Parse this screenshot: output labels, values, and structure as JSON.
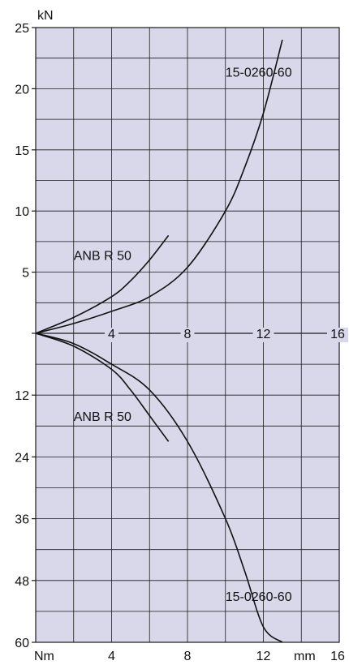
{
  "chart_data": {
    "type": "line",
    "colors": {
      "plot_background": "#d8d8ea",
      "grid": "#1a1a1a",
      "curve": "#111111"
    },
    "upper": {
      "unit": "kN",
      "ylim": [
        0,
        25
      ],
      "yticks": [
        {
          "value": 25,
          "label": "25"
        },
        {
          "value": 20,
          "label": "20"
        },
        {
          "value": 15,
          "label": "15"
        },
        {
          "value": 10,
          "label": "10"
        },
        {
          "value": 5,
          "label": "5"
        }
      ],
      "series": [
        {
          "name": "15-0260-60",
          "x": [
            0,
            2,
            4,
            6,
            8,
            10,
            11,
            12,
            13
          ],
          "y": [
            0,
            0.8,
            1.8,
            3,
            5.4,
            10,
            13.5,
            18,
            24
          ]
        },
        {
          "name": "ANB R 50",
          "x": [
            0,
            2,
            4,
            5,
            6,
            7
          ],
          "y": [
            0,
            1.3,
            3,
            4.3,
            6,
            8
          ]
        }
      ]
    },
    "middle_axis": {
      "xlim": [
        0,
        16
      ],
      "xticks": [
        {
          "value": 4,
          "label": "4"
        },
        {
          "value": 8,
          "label": "8"
        },
        {
          "value": 12,
          "label": "12"
        },
        {
          "value": 16,
          "label": "16"
        }
      ]
    },
    "lower": {
      "unit": "Nm",
      "ylim": [
        0,
        60
      ],
      "yticks": [
        {
          "value": 12,
          "label": "12"
        },
        {
          "value": 24,
          "label": "24"
        },
        {
          "value": 36,
          "label": "36"
        },
        {
          "value": 48,
          "label": "48"
        },
        {
          "value": 60,
          "label": "60"
        }
      ],
      "series": [
        {
          "name": "15-0260-60",
          "x": [
            0,
            2,
            4,
            6,
            8,
            10,
            11,
            12,
            13
          ],
          "y": [
            0,
            2,
            6,
            11,
            21,
            36,
            46,
            57,
            60
          ]
        },
        {
          "name": "ANB R 50",
          "x": [
            0,
            2,
            4,
            5,
            6,
            7
          ],
          "y": [
            0,
            2.5,
            7,
            11,
            16,
            21
          ]
        }
      ]
    },
    "bottom_axis": {
      "unit": "mm",
      "xticks": [
        {
          "value": 4,
          "label": "4"
        },
        {
          "value": 8,
          "label": "8"
        },
        {
          "value": 12,
          "label": "12"
        },
        {
          "value": 16,
          "label": "16"
        }
      ]
    },
    "annotations": [
      {
        "text": "15-0260-60",
        "panel": "upper",
        "x": 10,
        "y": 21
      },
      {
        "text": "ANB R 50",
        "panel": "upper",
        "x": 2,
        "y": 6
      },
      {
        "text": "ANB R 50",
        "panel": "lower",
        "x": 2,
        "y": 17
      },
      {
        "text": "15-0260-60",
        "panel": "lower",
        "x": 10,
        "y": 52
      }
    ],
    "grid": true
  }
}
